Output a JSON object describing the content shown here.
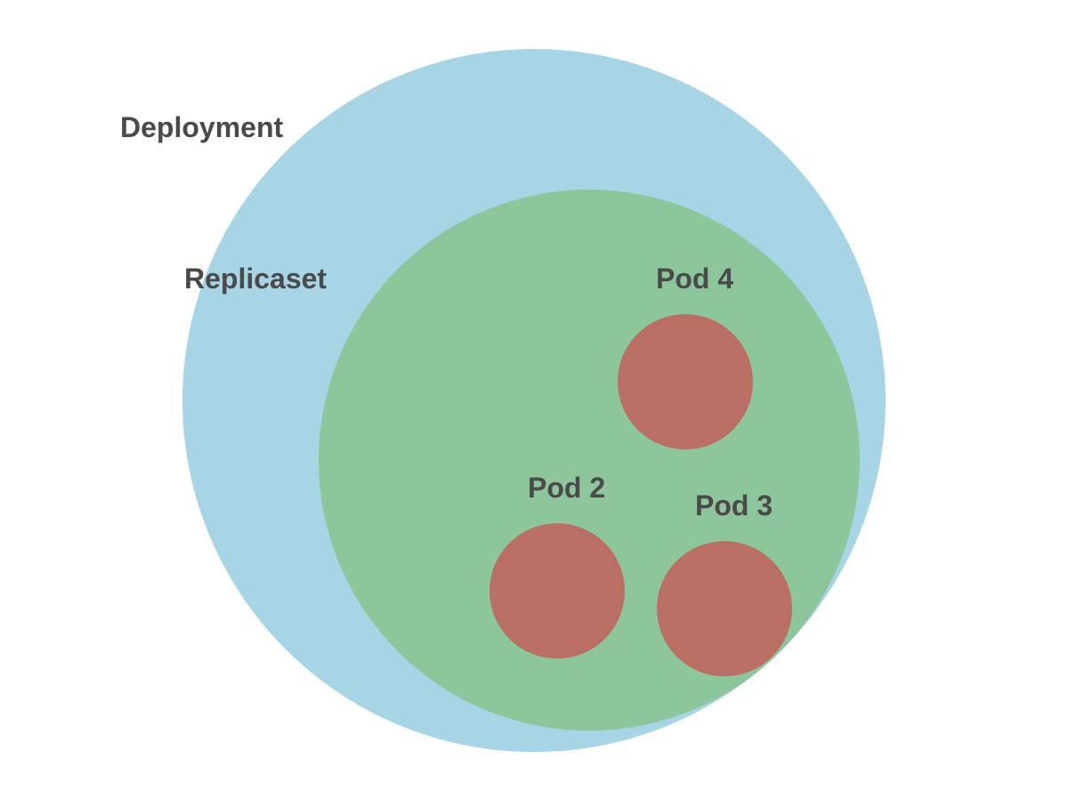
{
  "diagram": {
    "deployment": {
      "label": "Deployment",
      "color": "#a7d5e6"
    },
    "replicaset": {
      "label": "Replicaset",
      "color": "#8ec69c"
    },
    "pods": [
      {
        "label": "Pod 4",
        "color": "#b96f64"
      },
      {
        "label": "Pod 2",
        "color": "#b96f64"
      },
      {
        "label": "Pod 3",
        "color": "#b96f64"
      }
    ],
    "label_color": "#4a4a4a"
  }
}
